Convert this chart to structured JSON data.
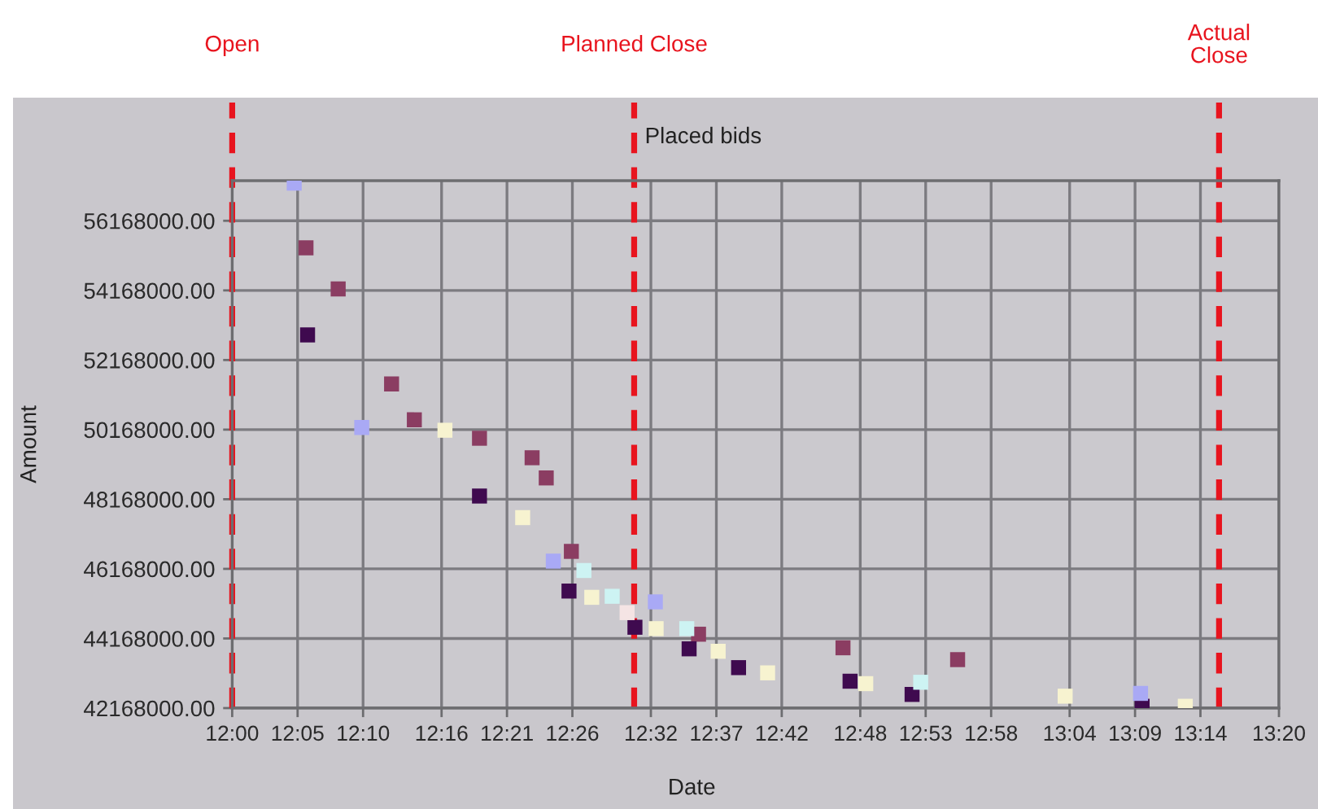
{
  "chart_data": {
    "type": "scatter",
    "title": "Placed bids",
    "xlabel": "Date",
    "ylabel": "Amount",
    "marker": "square",
    "grid": true,
    "xlim": [
      12.0,
      13.3333
    ],
    "xticks": [
      {
        "value": 12.0,
        "label": "12:00"
      },
      {
        "value": 12.0833,
        "label": "12:05"
      },
      {
        "value": 12.1667,
        "label": "12:10"
      },
      {
        "value": 12.2667,
        "label": "12:16"
      },
      {
        "value": 12.35,
        "label": "12:21"
      },
      {
        "value": 12.4333,
        "label": "12:26"
      },
      {
        "value": 12.5333,
        "label": "12:32"
      },
      {
        "value": 12.6167,
        "label": "12:37"
      },
      {
        "value": 12.7,
        "label": "12:42"
      },
      {
        "value": 12.8,
        "label": "12:48"
      },
      {
        "value": 12.8833,
        "label": "12:53"
      },
      {
        "value": 12.9667,
        "label": "12:58"
      },
      {
        "value": 13.0667,
        "label": "13:04"
      },
      {
        "value": 13.15,
        "label": "13:09"
      },
      {
        "value": 13.2333,
        "label": "13:14"
      },
      {
        "value": 13.3333,
        "label": "13:20"
      }
    ],
    "ylim": [
      42168000,
      57320000
    ],
    "yticks": [
      {
        "value": 42168000,
        "label": "42168000.00"
      },
      {
        "value": 44168000,
        "label": "44168000.00"
      },
      {
        "value": 46168000,
        "label": "46168000.00"
      },
      {
        "value": 48168000,
        "label": "48168000.00"
      },
      {
        "value": 50168000,
        "label": "50168000.00"
      },
      {
        "value": 52168000,
        "label": "52168000.00"
      },
      {
        "value": 54168000,
        "label": "54168000.00"
      },
      {
        "value": 56168000,
        "label": "56168000.00"
      }
    ],
    "ref_lines": [
      {
        "axis": "x",
        "value": 12.0,
        "label": "Open",
        "color": "#e8141e",
        "line_style": "dashed"
      },
      {
        "axis": "x",
        "value": 12.512,
        "label": "Planned Close",
        "color": "#e8141e",
        "line_style": "dashed"
      },
      {
        "axis": "x",
        "value": 13.257,
        "label": "Actual\nClose",
        "color": "#e8141e",
        "line_style": "dashed"
      }
    ],
    "series": [
      {
        "color": "#8b3d62",
        "x": [
          12.094,
          12.135,
          12.203,
          12.232,
          12.315,
          12.382,
          12.4,
          12.432,
          12.594,
          12.778,
          12.924
        ],
        "values": [
          55390000,
          54210000,
          51480000,
          50450000,
          49920000,
          49360000,
          48780000,
          46670000,
          44290000,
          43900000,
          43560000
        ]
      },
      {
        "color": "#3f0a4f",
        "x": [
          12.096,
          12.315,
          12.429,
          12.513,
          12.582,
          12.645,
          12.787,
          12.866,
          13.159
        ],
        "values": [
          52890000,
          48260000,
          45530000,
          44490000,
          43870000,
          43330000,
          42940000,
          42560000,
          42220000
        ]
      },
      {
        "color": "#f7f3d0",
        "x": [
          12.271,
          12.37,
          12.458,
          12.54,
          12.619,
          12.682,
          12.807,
          13.061,
          13.214
        ],
        "values": [
          50150000,
          47640000,
          45350000,
          44450000,
          43800000,
          43180000,
          42870000,
          42510000,
          42220000
        ]
      },
      {
        "color": "#cdf3f3",
        "x": [
          12.448,
          12.484,
          12.579,
          12.877
        ],
        "values": [
          46120000,
          45380000,
          44450000,
          42910000
        ]
      },
      {
        "color": "#a9a9f5",
        "x": [
          12.079,
          12.165,
          12.409,
          12.539,
          13.157
        ],
        "values": [
          57250000,
          50230000,
          46390000,
          45220000,
          42590000
        ]
      },
      {
        "color": "#f5e4e4",
        "x": [
          12.503
        ],
        "values": [
          44910000
        ]
      }
    ]
  }
}
